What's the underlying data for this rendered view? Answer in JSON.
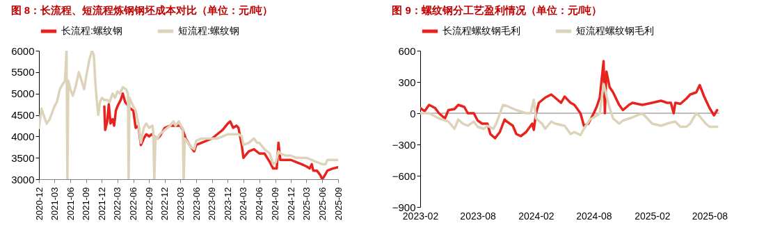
{
  "chart_data": [
    {
      "type": "line",
      "title": "图 8：长流程、短流程炼钢钢坯成本对比（单位：元/吨）",
      "legend": "top",
      "grid": false,
      "line_style": "solid",
      "marker": "none",
      "xlim": [
        "2020-12",
        "2025-09"
      ],
      "xticks": [
        "2020-12",
        "2021-03",
        "2021-06",
        "2021-09",
        "2021-12",
        "2022-03",
        "2022-06",
        "2022-09",
        "2022-12",
        "2023-03",
        "2023-06",
        "2023-09",
        "2023-12",
        "2024-03",
        "2024-06",
        "2024-09",
        "2024-12",
        "2025-03",
        "2025-06",
        "2025-09"
      ],
      "ylim": [
        3000,
        6000
      ],
      "yticks": [
        3000,
        3500,
        4000,
        4500,
        5000,
        5500,
        6000
      ],
      "series": [
        {
          "name": "长流程:螺纹钢",
          "color": "#e8231e",
          "x": [
            "2021-12-15",
            "2021-12-20",
            "2022-01-01",
            "2022-01-10",
            "2022-01-20",
            "2022-02-01",
            "2022-02-10",
            "2022-02-20",
            "2022-03-01",
            "2022-03-20",
            "2022-04-01",
            "2022-04-15",
            "2022-05-15",
            "2022-06-01",
            "2022-06-15",
            "2022-07-01",
            "2022-07-15",
            "2022-08-01",
            "2022-08-15",
            "2022-09-01",
            "2022-09-15",
            "2022-10-01",
            "2022-10-20",
            "2022-11-01",
            "2022-12-01",
            "2023-01-01",
            "2023-02-01",
            "2023-03-01",
            "2023-03-15",
            "2023-04-01",
            "2023-05-01",
            "2023-05-20",
            "2023-06-01",
            "2023-07-01",
            "2023-08-01",
            "2023-09-01",
            "2023-10-01",
            "2023-11-01",
            "2023-12-01",
            "2023-12-15",
            "2024-01-01",
            "2024-01-20",
            "2024-02-01",
            "2024-02-20",
            "2024-03-01",
            "2024-04-01",
            "2024-05-01",
            "2024-06-01",
            "2024-07-01",
            "2024-08-01",
            "2024-08-20",
            "2024-09-10",
            "2024-09-20",
            "2024-10-01",
            "2024-11-01",
            "2024-12-01",
            "2025-01-01",
            "2025-02-01",
            "2025-03-01",
            "2025-03-20",
            "2025-04-01",
            "2025-04-10",
            "2025-05-01",
            "2025-05-20",
            "2025-06-01",
            "2025-06-10",
            "2025-07-01",
            "2025-08-01",
            "2025-09-01"
          ],
          "values": [
            4700,
            4150,
            4350,
            4750,
            4300,
            4400,
            4250,
            4600,
            4700,
            4850,
            5000,
            4800,
            4650,
            4600,
            4200,
            4250,
            3800,
            3950,
            4050,
            4000,
            4050,
            4000,
            3950,
            4000,
            4200,
            4250,
            4250,
            4250,
            4150,
            3950,
            3750,
            3650,
            3800,
            3850,
            3900,
            3950,
            4050,
            4150,
            4300,
            4350,
            4200,
            4250,
            4200,
            3800,
            3500,
            3650,
            3700,
            3600,
            3600,
            3400,
            3250,
            3250,
            3850,
            3450,
            3450,
            3450,
            3400,
            3350,
            3300,
            3250,
            3350,
            3200,
            3200,
            3100,
            3000,
            3050,
            3200,
            3250,
            3280
          ]
        },
        {
          "name": "短流程:螺纹钢",
          "color": "#ddd3bb",
          "x": [
            "2020-12-01",
            "2020-12-15",
            "2021-01-01",
            "2021-01-15",
            "2021-02-01",
            "2021-03-01",
            "2021-03-15",
            "2021-04-01",
            "2021-04-15",
            "2021-05-01",
            "2021-05-10",
            "2021-05-15",
            "2021-05-20",
            "2021-06-01",
            "2021-06-15",
            "2021-07-01",
            "2021-07-20",
            "2021-08-01",
            "2021-08-20",
            "2021-09-01",
            "2021-09-20",
            "2021-10-05",
            "2021-10-15",
            "2021-10-25",
            "2021-11-01",
            "2021-11-10",
            "2021-11-20",
            "2021-12-01",
            "2021-12-15",
            "2022-01-01",
            "2022-01-15",
            "2022-02-01",
            "2022-02-15",
            "2022-03-01",
            "2022-03-15",
            "2022-04-01",
            "2022-04-20",
            "2022-05-01",
            "2022-05-05",
            "2022-05-10",
            "2022-06-01",
            "2022-06-15",
            "2022-07-01",
            "2022-07-15",
            "2022-08-01",
            "2022-08-15",
            "2022-09-01",
            "2022-09-20",
            "2022-09-25",
            "2022-10-01",
            "2022-10-08",
            "2022-10-20",
            "2022-11-01",
            "2022-12-01",
            "2023-01-01",
            "2023-01-20",
            "2023-02-01",
            "2023-02-20",
            "2023-03-10",
            "2023-03-15",
            "2023-03-20",
            "2023-03-27",
            "2023-04-15",
            "2023-05-01",
            "2023-05-20",
            "2023-06-01",
            "2023-07-01",
            "2023-08-01",
            "2023-09-01",
            "2023-10-01",
            "2023-11-01",
            "2023-12-01",
            "2024-01-01",
            "2024-02-01",
            "2024-02-20",
            "2024-03-01",
            "2024-04-01",
            "2024-05-01",
            "2024-05-20",
            "2024-06-01",
            "2024-07-01",
            "2024-08-01",
            "2024-08-20",
            "2024-09-05",
            "2024-09-20",
            "2024-10-01",
            "2024-11-01",
            "2024-12-01",
            "2025-01-01",
            "2025-02-01",
            "2025-03-01",
            "2025-04-01",
            "2025-05-01",
            "2025-06-01",
            "2025-06-20",
            "2025-07-01",
            "2025-07-15",
            "2025-08-01",
            "2025-09-01"
          ],
          "values": [
            4200,
            4650,
            4450,
            4300,
            4400,
            4700,
            4800,
            5100,
            5200,
            5300,
            6000,
            3000,
            5300,
            5100,
            4950,
            5150,
            5500,
            5350,
            5100,
            5400,
            5800,
            6000,
            5900,
            5200,
            4850,
            4500,
            4800,
            4900,
            4850,
            4850,
            4800,
            5000,
            4900,
            5050,
            5000,
            5150,
            5100,
            5000,
            3000,
            4900,
            4700,
            4600,
            4300,
            3850,
            4200,
            4300,
            4200,
            4250,
            4100,
            3000,
            4000,
            3950,
            4050,
            4150,
            4250,
            4350,
            4250,
            4350,
            4200,
            4200,
            3000,
            3950,
            3850,
            3750,
            3700,
            3900,
            3950,
            3950,
            3950,
            3950,
            4000,
            4050,
            4050,
            4050,
            4000,
            3800,
            3850,
            3950,
            3850,
            3850,
            3700,
            3600,
            3350,
            3400,
            3650,
            3600,
            3550,
            3550,
            3500,
            3500,
            3500,
            3450,
            3400,
            3350,
            3350,
            3450,
            3450,
            3450,
            3450
          ]
        }
      ]
    },
    {
      "type": "line",
      "title": "图 9：螺纹钢分工艺盈利情况（单位：元/吨）",
      "legend": "top",
      "grid": false,
      "line_style": "solid",
      "marker": "none",
      "xlim": [
        "2023-02",
        "2025-09"
      ],
      "xticks": [
        "2023-02",
        "2023-08",
        "2024-02",
        "2024-08",
        "2025-02",
        "2025-08"
      ],
      "ylim": [
        -900,
        600
      ],
      "yticks": [
        -900,
        -600,
        -300,
        0,
        300,
        600
      ],
      "ref_lines": [
        {
          "axis": "y",
          "value": 0,
          "color": "#a6a6a6"
        }
      ],
      "series": [
        {
          "name": "长流程螺纹钢毛利",
          "color": "#e8231e",
          "x": [
            "2023-02-01",
            "2023-02-15",
            "2023-03-01",
            "2023-03-20",
            "2023-04-01",
            "2023-04-20",
            "2023-05-01",
            "2023-05-20",
            "2023-06-01",
            "2023-06-20",
            "2023-07-01",
            "2023-07-20",
            "2023-08-01",
            "2023-08-15",
            "2023-09-01",
            "2023-09-10",
            "2023-09-25",
            "2023-10-10",
            "2023-10-25",
            "2023-11-01",
            "2023-11-20",
            "2023-12-01",
            "2023-12-15",
            "2024-01-01",
            "2024-01-20",
            "2024-01-25",
            "2024-02-01",
            "2024-02-10",
            "2024-03-01",
            "2024-03-20",
            "2024-04-01",
            "2024-04-20",
            "2024-05-01",
            "2024-05-20",
            "2024-06-01",
            "2024-06-20",
            "2024-07-01",
            "2024-07-15",
            "2024-08-01",
            "2024-08-10",
            "2024-08-20",
            "2024-09-01",
            "2024-09-05",
            "2024-09-10",
            "2024-09-20",
            "2024-10-01",
            "2024-10-20",
            "2024-11-01",
            "2024-11-20",
            "2024-12-01",
            "2025-01-01",
            "2025-02-01",
            "2025-03-01",
            "2025-03-20",
            "2025-04-01",
            "2025-04-10",
            "2025-04-15",
            "2025-05-01",
            "2025-05-20",
            "2025-06-01",
            "2025-06-20",
            "2025-07-01",
            "2025-07-15",
            "2025-08-01",
            "2025-08-15",
            "2025-08-25"
          ],
          "values": [
            50,
            20,
            80,
            50,
            0,
            -50,
            30,
            40,
            80,
            60,
            0,
            0,
            -70,
            -100,
            -100,
            -200,
            -240,
            -180,
            -60,
            -80,
            -120,
            -200,
            -220,
            -180,
            -100,
            -160,
            0,
            100,
            150,
            180,
            150,
            100,
            160,
            100,
            80,
            0,
            -120,
            -100,
            0,
            60,
            150,
            500,
            0,
            400,
            250,
            200,
            80,
            30,
            80,
            100,
            80,
            100,
            120,
            100,
            100,
            0,
            100,
            90,
            140,
            180,
            200,
            270,
            160,
            50,
            -20,
            30
          ]
        },
        {
          "name": "短流程螺纹钢毛利",
          "color": "#ddd3bb",
          "x": [
            "2023-02-01",
            "2023-03-01",
            "2023-04-01",
            "2023-05-01",
            "2023-05-20",
            "2023-06-01",
            "2023-06-15",
            "2023-07-01",
            "2023-07-20",
            "2023-08-01",
            "2023-08-20",
            "2023-09-01",
            "2023-09-20",
            "2023-10-01",
            "2023-10-20",
            "2023-11-01",
            "2023-12-01",
            "2024-01-01",
            "2024-01-15",
            "2024-01-25",
            "2024-02-01",
            "2024-02-20",
            "2024-03-01",
            "2024-03-20",
            "2024-04-01",
            "2024-05-01",
            "2024-05-20",
            "2024-06-01",
            "2024-06-20",
            "2024-07-01",
            "2024-07-20",
            "2024-08-01",
            "2024-08-20",
            "2024-09-01",
            "2024-09-20",
            "2024-10-01",
            "2024-10-20",
            "2024-11-01",
            "2024-12-01",
            "2025-01-01",
            "2025-01-20",
            "2025-02-01",
            "2025-03-01",
            "2025-03-20",
            "2025-04-01",
            "2025-04-15",
            "2025-05-01",
            "2025-05-20",
            "2025-06-01",
            "2025-06-20",
            "2025-07-01",
            "2025-07-20",
            "2025-08-01",
            "2025-08-25"
          ],
          "values": [
            0,
            0,
            -50,
            -80,
            -150,
            -60,
            -100,
            -120,
            -80,
            -130,
            -150,
            -120,
            -150,
            -80,
            80,
            70,
            30,
            0,
            0,
            130,
            -50,
            -100,
            -150,
            -80,
            -100,
            -120,
            -200,
            -180,
            -210,
            -150,
            -60,
            -40,
            0,
            280,
            50,
            -50,
            -100,
            -70,
            -40,
            0,
            -60,
            -100,
            -120,
            -100,
            -90,
            -80,
            -130,
            -130,
            -100,
            0,
            -30,
            -100,
            -130,
            -130
          ]
        }
      ]
    }
  ]
}
